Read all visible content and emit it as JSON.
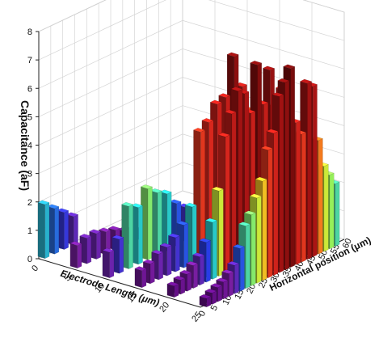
{
  "chart_data": {
    "type": "bar3d",
    "title": "",
    "ylabel": "Capacitance (aF)",
    "xlabel": "Electrode Length (μm)",
    "zlabel": "Horizontal position (μm)",
    "ylim": [
      0,
      8
    ],
    "y_ticks": [
      "0",
      "1",
      "2",
      "3",
      "4",
      "5",
      "6",
      "7",
      "8"
    ],
    "x_ticks": [
      "0",
      "5",
      "10",
      "15",
      "20",
      "25"
    ],
    "z_ticks": [
      "0",
      "5",
      "10",
      "15",
      "20",
      "25",
      "30",
      "35",
      "40",
      "45",
      "50",
      "55",
      "60"
    ],
    "grid": true,
    "note": "Approximate bar heights for each electrode length row along horizontal position",
    "rows": [
      {
        "length": 0,
        "heights": [
          1.9,
          1.6,
          1.3,
          1.0
        ]
      },
      {
        "length": 5,
        "heights": [
          0.8,
          0.9,
          0.9,
          0.8,
          0.7,
          0.5,
          0.4
        ]
      },
      {
        "length": 10,
        "heights": [
          0.9,
          1.2,
          2.2,
          2.0,
          2.5,
          2.2,
          2.0,
          1.5,
          1.2,
          1.0
        ]
      },
      {
        "length": 15,
        "heights": [
          0.6,
          0.7,
          0.9,
          1.0,
          1.2,
          1.5,
          2.0,
          4.5,
          4.7,
          5.2,
          5.3,
          6.6,
          5.4,
          4.4,
          3.7,
          3.0
        ]
      },
      {
        "length": 20,
        "heights": [
          0.4,
          0.5,
          0.6,
          0.8,
          1.0,
          1.4,
          2.0,
          3.0,
          4.8,
          5.5,
          6.2,
          6.0,
          5.2,
          6.8,
          5.3,
          6.4,
          5.0,
          5.5,
          4.4,
          3.6,
          2.9
        ]
      },
      {
        "length": 25,
        "heights": [
          0.3,
          0.4,
          0.5,
          0.6,
          0.8,
          1.0,
          1.5,
          2.2,
          2.5,
          3.0,
          3.5,
          4.5,
          5.0,
          6.2,
          6.6,
          7.0,
          5.0,
          4.5,
          6.2,
          6.0,
          4.0,
          3.0,
          2.6,
          2.2
        ]
      }
    ]
  }
}
